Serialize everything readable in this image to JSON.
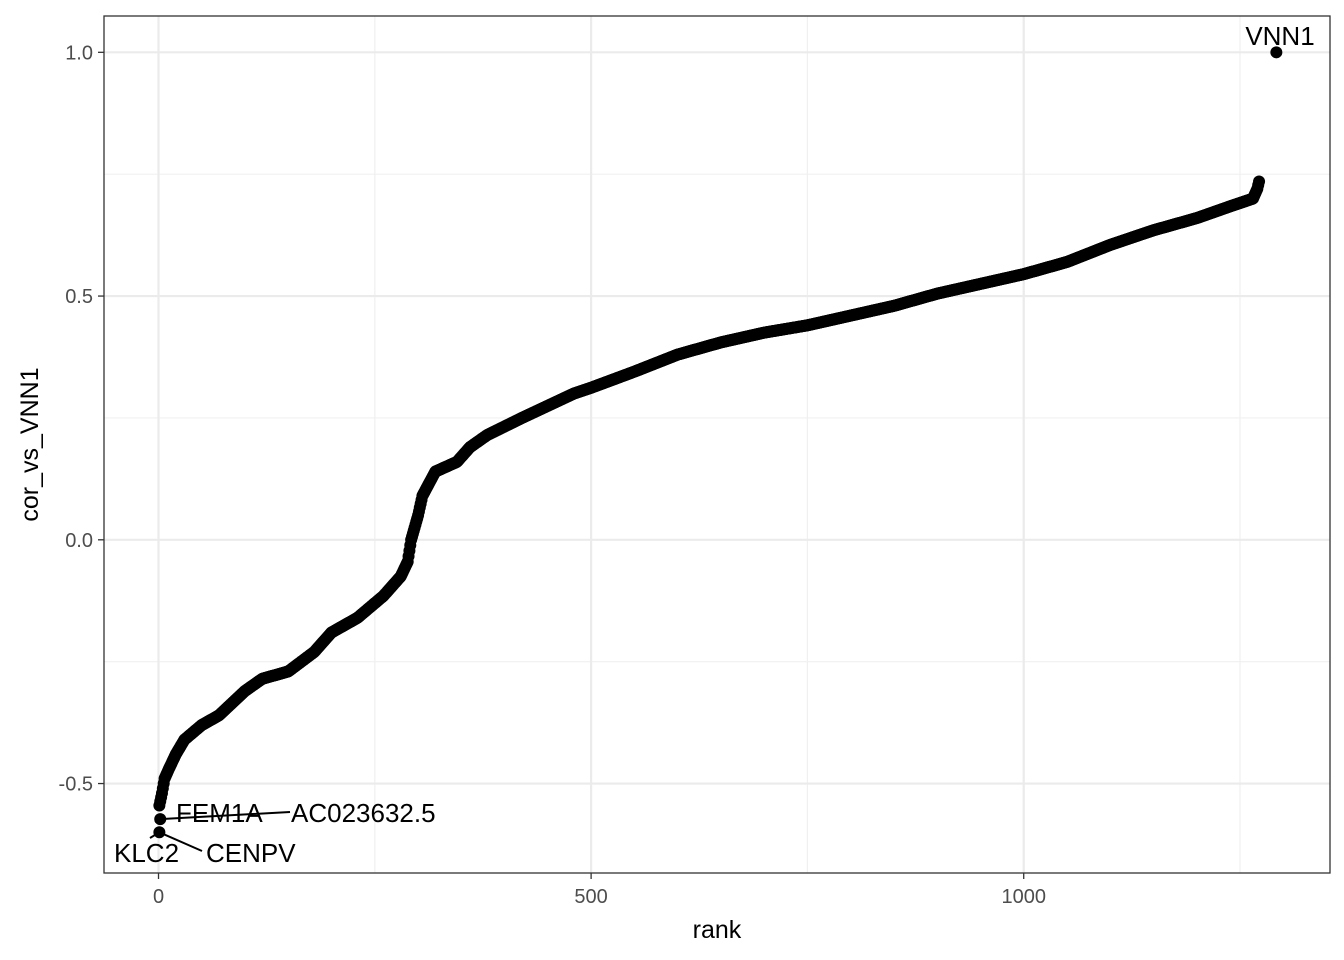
{
  "chart_data": {
    "type": "scatter",
    "title": "",
    "xlabel": "rank",
    "ylabel": "cor_vs_VNN1",
    "xlim": [
      -63,
      1354
    ],
    "ylim": [
      -0.6835,
      1.0745
    ],
    "x_ticks": [
      0,
      500,
      1000
    ],
    "x_tick_labels": [
      "0",
      "500",
      "1000"
    ],
    "y_ticks": [
      -0.5,
      0.0,
      0.5,
      1.0
    ],
    "y_tick_labels": [
      "-0.5",
      "0.0",
      "0.5",
      "1.0"
    ],
    "grid": true,
    "theme": "black-and-white",
    "point_color": "#000000",
    "curve_knots": [
      [
        1,
        -0.545
      ],
      [
        4,
        -0.52
      ],
      [
        7,
        -0.49
      ],
      [
        12,
        -0.47
      ],
      [
        20,
        -0.44
      ],
      [
        30,
        -0.41
      ],
      [
        50,
        -0.38
      ],
      [
        70,
        -0.36
      ],
      [
        100,
        -0.31
      ],
      [
        120,
        -0.285
      ],
      [
        150,
        -0.27
      ],
      [
        180,
        -0.23
      ],
      [
        200,
        -0.19
      ],
      [
        230,
        -0.16
      ],
      [
        260,
        -0.115
      ],
      [
        280,
        -0.075
      ],
      [
        288,
        -0.045
      ],
      [
        292,
        0.0
      ],
      [
        300,
        0.05
      ],
      [
        305,
        0.09
      ],
      [
        320,
        0.14
      ],
      [
        345,
        0.16
      ],
      [
        360,
        0.19
      ],
      [
        380,
        0.215
      ],
      [
        420,
        0.25
      ],
      [
        450,
        0.275
      ],
      [
        480,
        0.3
      ],
      [
        500,
        0.312
      ],
      [
        550,
        0.345
      ],
      [
        600,
        0.38
      ],
      [
        650,
        0.405
      ],
      [
        700,
        0.425
      ],
      [
        750,
        0.44
      ],
      [
        800,
        0.46
      ],
      [
        850,
        0.48
      ],
      [
        900,
        0.505
      ],
      [
        950,
        0.525
      ],
      [
        1000,
        0.545
      ],
      [
        1050,
        0.57
      ],
      [
        1100,
        0.605
      ],
      [
        1150,
        0.635
      ],
      [
        1200,
        0.66
      ],
      [
        1240,
        0.685
      ],
      [
        1265,
        0.7
      ],
      [
        1270,
        0.72
      ],
      [
        1272,
        0.735
      ]
    ],
    "labeled_points": [
      {
        "label": "VNN1",
        "x": 1292,
        "y": 1.0
      },
      {
        "label": "FEM1A",
        "x": 2,
        "y": -0.573
      },
      {
        "label": "AC023632.5",
        "x": 2,
        "y": -0.573
      },
      {
        "label": "KLC2",
        "x": 1,
        "y": -0.6
      },
      {
        "label": "CENPV",
        "x": 1,
        "y": -0.6
      }
    ]
  }
}
